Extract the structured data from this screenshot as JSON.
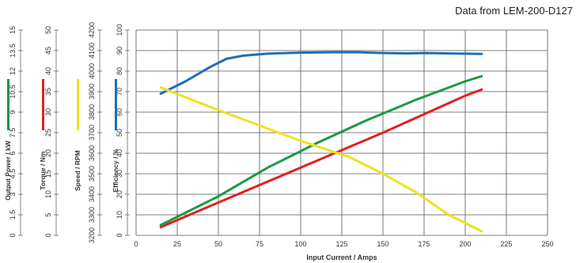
{
  "header_note": "Data from LEM-200-D127",
  "chart_data": {
    "type": "line",
    "xlabel": "Input Current / Amps",
    "xlim": [
      0,
      250
    ],
    "x_ticks": [
      0,
      25,
      50,
      75,
      100,
      125,
      150,
      175,
      200,
      225,
      250
    ],
    "axes": [
      {
        "key": "power",
        "label": "Output Power / kW",
        "ticks": [
          "0",
          "1.5",
          "3",
          "4.5",
          "6",
          "7.5",
          "9",
          "10.5",
          "12",
          "13.5",
          "15"
        ],
        "color": "#1a9a44"
      },
      {
        "key": "torque",
        "label": "Torque / Nm",
        "ticks": [
          "0",
          "5",
          "10",
          "15",
          "20",
          "25",
          "30",
          "35",
          "40",
          "45",
          "50"
        ],
        "color": "#e02020"
      },
      {
        "key": "speed",
        "label": "Speed / RPM",
        "ticks": [
          "3200",
          "3300",
          "3400",
          "3500",
          "3600",
          "3700",
          "3800",
          "3900",
          "4000",
          "4100",
          "4200"
        ],
        "color": "#f0e020"
      },
      {
        "key": "eff",
        "label": "Efficiency / %",
        "ticks": [
          "0",
          "10",
          "20",
          "30",
          "40",
          "50",
          "60",
          "70",
          "80",
          "90",
          "100"
        ],
        "color": "#1f6fb5"
      }
    ],
    "ylim": [
      0,
      100
    ],
    "grid": true,
    "series": [
      {
        "name": "Efficiency",
        "color": "#1f6fb5",
        "x": [
          15,
          30,
          45,
          55,
          65,
          80,
          100,
          120,
          135,
          150,
          165,
          175,
          190,
          210
        ],
        "y": [
          69,
          75,
          82,
          86,
          87.5,
          88.5,
          89,
          89.2,
          89.2,
          88.8,
          88.6,
          88.8,
          88.6,
          88.4
        ]
      },
      {
        "name": "Torque",
        "color": "#e02020",
        "x": [
          15,
          50,
          100,
          150,
          175,
          200,
          210
        ],
        "y": [
          4,
          16,
          33,
          50,
          59,
          68,
          71
        ]
      },
      {
        "name": "Output Power",
        "color": "#1a9a44",
        "x": [
          15,
          50,
          80,
          110,
          140,
          170,
          200,
          210
        ],
        "y": [
          5,
          19,
          33,
          45,
          56,
          66,
          75,
          77.5
        ]
      },
      {
        "name": "Speed",
        "color": "#f0e020",
        "x": [
          15,
          50,
          100,
          130,
          150,
          170,
          190,
          210
        ],
        "y": [
          72,
          61,
          46,
          38,
          30,
          21,
          10,
          2
        ]
      }
    ]
  }
}
